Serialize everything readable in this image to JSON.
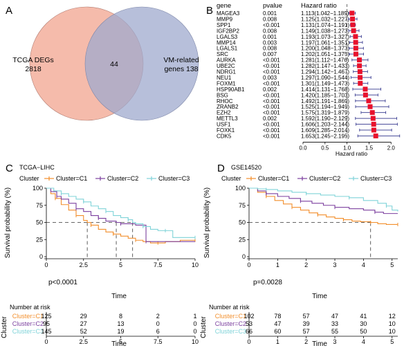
{
  "panels": {
    "A": {
      "letter": "A",
      "left_label_1": "TCGA DEGs",
      "left_label_2": "2818",
      "overlap": "44",
      "right_label_1": "VM-related",
      "right_label_2": "genes 138",
      "colors": {
        "left": "#f2a48f",
        "right": "#9fa9cd"
      }
    },
    "B": {
      "letter": "B",
      "col_gene": "gene",
      "col_pvalue": "pvalue",
      "col_hr": "Hazard ratio",
      "xlabel": "Hazard ratio",
      "xticks": [
        "0.0",
        "0.5",
        "1.0",
        "1.5",
        "2.0"
      ],
      "color": "#e8112d",
      "ci_color": "#4a4d9a"
    },
    "C": {
      "letter": "C",
      "title": "TCGA−LIHC",
      "pvalue": "p<0.0001",
      "xticks": [
        "0",
        "2.5",
        "5",
        "7.5",
        "10"
      ],
      "risk_xticks": [
        "0",
        "2.5",
        "5",
        "7.5",
        "10"
      ]
    },
    "D": {
      "letter": "D",
      "title": "GSE14520",
      "pvalue": "p=0.0028",
      "xticks": [
        "0",
        "1",
        "2",
        "3",
        "4",
        "5"
      ],
      "risk_xticks": [
        "0",
        "1",
        "2",
        "3",
        "4",
        "5"
      ]
    },
    "km_common": {
      "legend_title": "Cluster",
      "ylabel": "Survival probability (%)",
      "yticks": [
        "0",
        "25",
        "50",
        "75",
        "100"
      ],
      "xlabel": "Time",
      "risk_title": "Number at risk",
      "risk_ylabel": "Cluster",
      "colors": {
        "C1": "#f28e2b",
        "C2": "#7b3f9e",
        "C3": "#7fd3d8"
      }
    }
  },
  "chart_data": [
    {
      "type": "forest",
      "panel": "B",
      "xlim": [
        0,
        2.2
      ],
      "reference_line": 1,
      "genes": [
        {
          "gene": "MAGEA3",
          "pvalue": "0.001",
          "hr_text": "1.113(1.042−1.189)",
          "hr": 1.113,
          "lo": 1.042,
          "hi": 1.189
        },
        {
          "gene": "MMP9",
          "pvalue": "0.008",
          "hr_text": "1.125(1.032−1.227)",
          "hr": 1.125,
          "lo": 1.032,
          "hi": 1.227
        },
        {
          "gene": "SPP1",
          "pvalue": "<0.001",
          "hr_text": "1.131(1.074−1.191)",
          "hr": 1.131,
          "lo": 1.074,
          "hi": 1.191
        },
        {
          "gene": "IGF2BP2",
          "pvalue": "0.008",
          "hr_text": "1.149(1.038−1.273)",
          "hr": 1.149,
          "lo": 1.038,
          "hi": 1.273
        },
        {
          "gene": "LGALS3",
          "pvalue": "0.001",
          "hr_text": "1.193(1.073−1.327)",
          "hr": 1.193,
          "lo": 1.073,
          "hi": 1.327
        },
        {
          "gene": "MMP14",
          "pvalue": "0.003",
          "hr_text": "1.197(1.061−1.351)",
          "hr": 1.197,
          "lo": 1.061,
          "hi": 1.351
        },
        {
          "gene": "LGALS1",
          "pvalue": "0.008",
          "hr_text": "1.200(1.048−1.373)",
          "hr": 1.2,
          "lo": 1.048,
          "hi": 1.373
        },
        {
          "gene": "SRC",
          "pvalue": "0.007",
          "hr_text": "1.202(1.051−1.375)",
          "hr": 1.202,
          "lo": 1.051,
          "hi": 1.375
        },
        {
          "gene": "AURKA",
          "pvalue": "<0.001",
          "hr_text": "1.281(1.112−1.476)",
          "hr": 1.281,
          "lo": 1.112,
          "hi": 1.476
        },
        {
          "gene": "UBE2C",
          "pvalue": "<0.001",
          "hr_text": "1.282(1.147−1.433)",
          "hr": 1.282,
          "lo": 1.147,
          "hi": 1.433
        },
        {
          "gene": "NDRG1",
          "pvalue": "<0.001",
          "hr_text": "1.294(1.142−1.467)",
          "hr": 1.294,
          "lo": 1.142,
          "hi": 1.467
        },
        {
          "gene": "NEU1",
          "pvalue": "0.003",
          "hr_text": "1.297(1.090−1.544)",
          "hr": 1.297,
          "lo": 1.09,
          "hi": 1.544
        },
        {
          "gene": "FOXM1",
          "pvalue": "<0.001",
          "hr_text": "1.301(1.149−1.473)",
          "hr": 1.301,
          "lo": 1.149,
          "hi": 1.473
        },
        {
          "gene": "HSP90AB1",
          "pvalue": "0.002",
          "hr_text": "1.414(1.131−1.768)",
          "hr": 1.414,
          "lo": 1.131,
          "hi": 1.768
        },
        {
          "gene": "BSG",
          "pvalue": "<0.001",
          "hr_text": "1.420(1.185−1.703)",
          "hr": 1.42,
          "lo": 1.185,
          "hi": 1.703
        },
        {
          "gene": "RHOC",
          "pvalue": "<0.001",
          "hr_text": "1.492(1.191−1.869)",
          "hr": 1.492,
          "lo": 1.191,
          "hi": 1.869
        },
        {
          "gene": "ZRANB2",
          "pvalue": "<0.001",
          "hr_text": "1.525(1.194−1.949)",
          "hr": 1.525,
          "lo": 1.194,
          "hi": 1.949
        },
        {
          "gene": "EZH2",
          "pvalue": "<0.001",
          "hr_text": "1.575(1.319−1.879)",
          "hr": 1.575,
          "lo": 1.319,
          "hi": 1.879
        },
        {
          "gene": "METTL3",
          "pvalue": "0.002",
          "hr_text": "1.592(1.190−2.129)",
          "hr": 1.592,
          "lo": 1.19,
          "hi": 2.129
        },
        {
          "gene": "USF1",
          "pvalue": "<0.001",
          "hr_text": "1.606(1.203−2.144)",
          "hr": 1.606,
          "lo": 1.203,
          "hi": 2.144
        },
        {
          "gene": "FOXK1",
          "pvalue": "<0.001",
          "hr_text": "1.609(1.285−2.014)",
          "hr": 1.609,
          "lo": 1.285,
          "hi": 2.014
        },
        {
          "gene": "CDK5",
          "pvalue": "<0.001",
          "hr_text": "1.653(1.245−2.195)",
          "hr": 1.653,
          "lo": 1.245,
          "hi": 2.195
        }
      ]
    },
    {
      "type": "line",
      "panel": "C",
      "xlim": [
        0,
        10
      ],
      "ylim": [
        0,
        100
      ],
      "medians": [
        2.75,
        4.7,
        5.8
      ],
      "series": [
        {
          "name": "Cluster=C1",
          "key": "C1",
          "points": [
            [
              0,
              100
            ],
            [
              0.3,
              92
            ],
            [
              0.6,
              85
            ],
            [
              1,
              76
            ],
            [
              1.5,
              68
            ],
            [
              2,
              60
            ],
            [
              2.5,
              53
            ],
            [
              2.75,
              50
            ],
            [
              3,
              46
            ],
            [
              3.5,
              40
            ],
            [
              4,
              36
            ],
            [
              4.5,
              33
            ],
            [
              5,
              30
            ],
            [
              5.5,
              27
            ],
            [
              6,
              24
            ],
            [
              6.5,
              22
            ],
            [
              7,
              20
            ],
            [
              7.5,
              20
            ],
            [
              8,
              22
            ],
            [
              9,
              24
            ],
            [
              10,
              24
            ]
          ]
        },
        {
          "name": "Cluster=C2",
          "key": "C2",
          "points": [
            [
              0,
              100
            ],
            [
              0.3,
              95
            ],
            [
              0.7,
              88
            ],
            [
              1,
              84
            ],
            [
              1.5,
              78
            ],
            [
              2,
              70
            ],
            [
              2.5,
              66
            ],
            [
              3,
              60
            ],
            [
              3.5,
              56
            ],
            [
              4,
              52
            ],
            [
              4.7,
              50
            ],
            [
              5,
              48
            ],
            [
              6,
              46
            ],
            [
              6.5,
              46
            ],
            [
              6.7,
              22
            ],
            [
              7,
              22
            ],
            [
              10,
              22
            ]
          ]
        },
        {
          "name": "Cluster=C3",
          "key": "C3",
          "points": [
            [
              0,
              100
            ],
            [
              0.5,
              96
            ],
            [
              1,
              92
            ],
            [
              1.5,
              88
            ],
            [
              2,
              84
            ],
            [
              2.5,
              80
            ],
            [
              3,
              74
            ],
            [
              3.5,
              70
            ],
            [
              4,
              66
            ],
            [
              4.5,
              60
            ],
            [
              5,
              57
            ],
            [
              5.5,
              54
            ],
            [
              5.8,
              50
            ],
            [
              6,
              48
            ],
            [
              6.5,
              44
            ],
            [
              7,
              40
            ],
            [
              7.5,
              38
            ],
            [
              8,
              38
            ],
            [
              8.5,
              28
            ],
            [
              9,
              28
            ],
            [
              10,
              28
            ]
          ]
        }
      ],
      "risk_table": {
        "times": [
          0,
          2.5,
          5,
          7.5,
          10
        ],
        "rows": [
          {
            "name": "Cluster=C1",
            "key": "C1",
            "values": [
              125,
              29,
              8,
              2,
              1
            ]
          },
          {
            "name": "Cluster=C2",
            "key": "C2",
            "values": [
              95,
              27,
              13,
              0,
              0
            ]
          },
          {
            "name": "Cluster=C3",
            "key": "C3",
            "values": [
              145,
              52,
              19,
              6,
              0
            ]
          }
        ]
      }
    },
    {
      "type": "line",
      "panel": "D",
      "xlim": [
        0,
        5.2
      ],
      "ylim": [
        0,
        100
      ],
      "medians": [
        4.25
      ],
      "series": [
        {
          "name": "Cluster=C1",
          "key": "C1",
          "points": [
            [
              0,
              100
            ],
            [
              0.3,
              94
            ],
            [
              0.6,
              88
            ],
            [
              0.9,
              82
            ],
            [
              1.2,
              77
            ],
            [
              1.5,
              72
            ],
            [
              1.8,
              68
            ],
            [
              2.1,
              64
            ],
            [
              2.4,
              61
            ],
            [
              2.7,
              58
            ],
            [
              3,
              56
            ],
            [
              3.3,
              54
            ],
            [
              3.6,
              52
            ],
            [
              3.9,
              51
            ],
            [
              4.25,
              50
            ],
            [
              4.5,
              48
            ],
            [
              4.8,
              47
            ],
            [
              5.2,
              47
            ]
          ]
        },
        {
          "name": "Cluster=C2",
          "key": "C2",
          "points": [
            [
              0,
              100
            ],
            [
              0.3,
              96
            ],
            [
              0.6,
              92
            ],
            [
              1,
              88
            ],
            [
              1.4,
              85
            ],
            [
              1.8,
              81
            ],
            [
              2.2,
              78
            ],
            [
              2.6,
              75
            ],
            [
              3,
              72
            ],
            [
              3.5,
              70
            ],
            [
              4,
              68
            ],
            [
              4.4,
              65
            ],
            [
              4.7,
              63
            ],
            [
              5.2,
              63
            ]
          ]
        },
        {
          "name": "Cluster=C3",
          "key": "C3",
          "points": [
            [
              0,
              100
            ],
            [
              0.3,
              99
            ],
            [
              0.6,
              98
            ],
            [
              1,
              96
            ],
            [
              1.5,
              94
            ],
            [
              2,
              92
            ],
            [
              2.5,
              90
            ],
            [
              3,
              88
            ],
            [
              3.5,
              86
            ],
            [
              4,
              82
            ],
            [
              4.5,
              78
            ],
            [
              4.8,
              74
            ],
            [
              5,
              68
            ],
            [
              5.2,
              66
            ]
          ]
        }
      ],
      "risk_table": {
        "times": [
          0,
          1,
          2,
          3,
          4,
          5
        ],
        "rows": [
          {
            "name": "Cluster=C1",
            "key": "C1",
            "values": [
              102,
              78,
              57,
              47,
              41,
              12
            ]
          },
          {
            "name": "Cluster=C2",
            "key": "C2",
            "values": [
              53,
              47,
              39,
              33,
              30,
              10
            ]
          },
          {
            "name": "Cluster=C3",
            "key": "C3",
            "values": [
              66,
              60,
              57,
              55,
              50,
              10
            ]
          }
        ]
      }
    }
  ]
}
